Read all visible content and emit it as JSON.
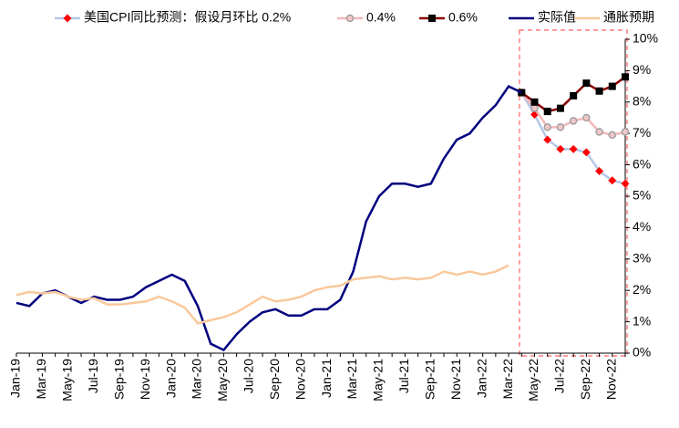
{
  "chart_data": {
    "type": "line",
    "categories": [
      "Jan-19",
      null,
      "Mar-19",
      null,
      "May-19",
      null,
      "Jul-19",
      null,
      "Sep-19",
      null,
      "Nov-19",
      null,
      "Jan-20",
      null,
      "Mar-20",
      null,
      "May-20",
      null,
      "Jul-20",
      null,
      "Sep-20",
      null,
      "Nov-20",
      null,
      "Jan-21",
      null,
      "Mar-21",
      null,
      "May-21",
      null,
      "Jul-21",
      null,
      "Sep-21",
      null,
      "Nov-21",
      null,
      "Jan-22",
      null,
      "Mar-22",
      null,
      "May-22",
      null,
      "Jul-22",
      null,
      "Sep-22",
      null,
      "Nov-22",
      null
    ],
    "series": [
      {
        "name": "美国CPI同比预测：假设月环比 0.2%",
        "color": "#b4c7e7",
        "marker": "diamond",
        "marker_color": "#ff0000",
        "values": [
          null,
          null,
          null,
          null,
          null,
          null,
          null,
          null,
          null,
          null,
          null,
          null,
          null,
          null,
          null,
          null,
          null,
          null,
          null,
          null,
          null,
          null,
          null,
          null,
          null,
          null,
          null,
          null,
          null,
          null,
          null,
          null,
          null,
          null,
          null,
          null,
          null,
          null,
          null,
          8.3,
          7.6,
          6.8,
          6.5,
          6.5,
          6.4,
          5.8,
          5.5,
          5.4
        ]
      },
      {
        "name": "0.4%",
        "color": "#f4b8b8",
        "marker": "circle",
        "marker_color": "#a0a0a0",
        "values": [
          null,
          null,
          null,
          null,
          null,
          null,
          null,
          null,
          null,
          null,
          null,
          null,
          null,
          null,
          null,
          null,
          null,
          null,
          null,
          null,
          null,
          null,
          null,
          null,
          null,
          null,
          null,
          null,
          null,
          null,
          null,
          null,
          null,
          null,
          null,
          null,
          null,
          null,
          null,
          8.3,
          7.8,
          7.2,
          7.2,
          7.4,
          7.5,
          7.05,
          6.95,
          7.05
        ]
      },
      {
        "name": "0.6%",
        "color": "#8b0000",
        "marker": "square",
        "marker_color": "#000000",
        "values": [
          null,
          null,
          null,
          null,
          null,
          null,
          null,
          null,
          null,
          null,
          null,
          null,
          null,
          null,
          null,
          null,
          null,
          null,
          null,
          null,
          null,
          null,
          null,
          null,
          null,
          null,
          null,
          null,
          null,
          null,
          null,
          null,
          null,
          null,
          null,
          null,
          null,
          null,
          null,
          8.3,
          8.0,
          7.7,
          7.8,
          8.2,
          8.6,
          8.35,
          8.5,
          8.8
        ]
      },
      {
        "name": "实际值",
        "color": "#00007f",
        "values": [
          1.6,
          1.5,
          1.9,
          2.0,
          1.8,
          1.6,
          1.8,
          1.7,
          1.7,
          1.8,
          2.1,
          2.3,
          2.5,
          2.3,
          1.5,
          0.3,
          0.1,
          0.6,
          1.0,
          1.3,
          1.4,
          1.2,
          1.2,
          1.4,
          1.4,
          1.7,
          2.6,
          4.2,
          5.0,
          5.4,
          5.4,
          5.3,
          5.4,
          6.2,
          6.8,
          7.0,
          7.5,
          7.9,
          8.5,
          8.3,
          null,
          null,
          null,
          null,
          null,
          null,
          null,
          null
        ]
      },
      {
        "name": "通胀预期",
        "color": "#f9c89b",
        "values": [
          1.85,
          1.95,
          1.9,
          1.95,
          1.8,
          1.7,
          1.75,
          1.55,
          1.55,
          1.6,
          1.65,
          1.8,
          1.65,
          1.45,
          0.95,
          1.05,
          1.15,
          1.3,
          1.55,
          1.8,
          1.65,
          1.7,
          1.8,
          2.0,
          2.1,
          2.15,
          2.35,
          2.4,
          2.45,
          2.35,
          2.4,
          2.35,
          2.4,
          2.6,
          2.5,
          2.6,
          2.5,
          2.6,
          2.8,
          null,
          null,
          null,
          null,
          null,
          null,
          null,
          null,
          null
        ]
      }
    ],
    "ylim": [
      0,
      10
    ],
    "yticks": [
      {
        "value": 0,
        "label": "0%"
      },
      {
        "value": 1,
        "label": "1%"
      },
      {
        "value": 2,
        "label": "2%"
      },
      {
        "value": 3,
        "label": "3%"
      },
      {
        "value": 4,
        "label": "4%"
      },
      {
        "value": 5,
        "label": "5%"
      },
      {
        "value": 6,
        "label": "6%"
      },
      {
        "value": 7,
        "label": "7%"
      },
      {
        "value": 8,
        "label": "8%"
      },
      {
        "value": 9,
        "label": "9%"
      },
      {
        "value": 10,
        "label": "10%"
      }
    ],
    "y_axis_side": "right",
    "grid": false
  }
}
